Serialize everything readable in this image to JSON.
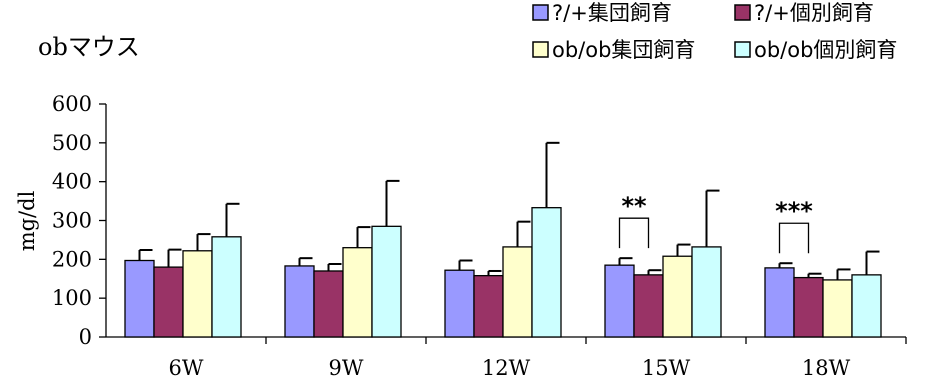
{
  "chart_data": {
    "type": "bar",
    "title": "obマウス",
    "ylabel": "mg/dl",
    "xlabel": "",
    "ylim": [
      0,
      600
    ],
    "yticks": [
      0,
      100,
      200,
      300,
      400,
      500,
      600
    ],
    "grid": false,
    "legend_position": "top-right",
    "categories": [
      "6W",
      "9W",
      "12W",
      "15W",
      "18W"
    ],
    "series": [
      {
        "name": "?/+集団飼育",
        "color": "#9999ff",
        "values": [
          197,
          183,
          172,
          185,
          178
        ],
        "errors": [
          27,
          20,
          25,
          18,
          12
        ]
      },
      {
        "name": "?/+個別飼育",
        "color": "#993366",
        "values": [
          180,
          170,
          158,
          160,
          153
        ],
        "errors": [
          45,
          18,
          12,
          12,
          10
        ]
      },
      {
        "name": "ob/ob集団飼育",
        "color": "#ffffcc",
        "values": [
          222,
          230,
          232,
          208,
          147
        ],
        "errors": [
          43,
          53,
          65,
          30,
          27
        ]
      },
      {
        "name": "ob/ob個別飼育",
        "color": "#ccffff",
        "values": [
          258,
          285,
          333,
          232,
          160
        ],
        "errors": [
          85,
          117,
          167,
          145,
          60
        ]
      }
    ],
    "annotations": [
      {
        "text": "**",
        "category": "15W",
        "between_series": [
          0,
          1
        ]
      },
      {
        "text": "***",
        "category": "18W",
        "between_series": [
          0,
          1
        ]
      }
    ]
  }
}
